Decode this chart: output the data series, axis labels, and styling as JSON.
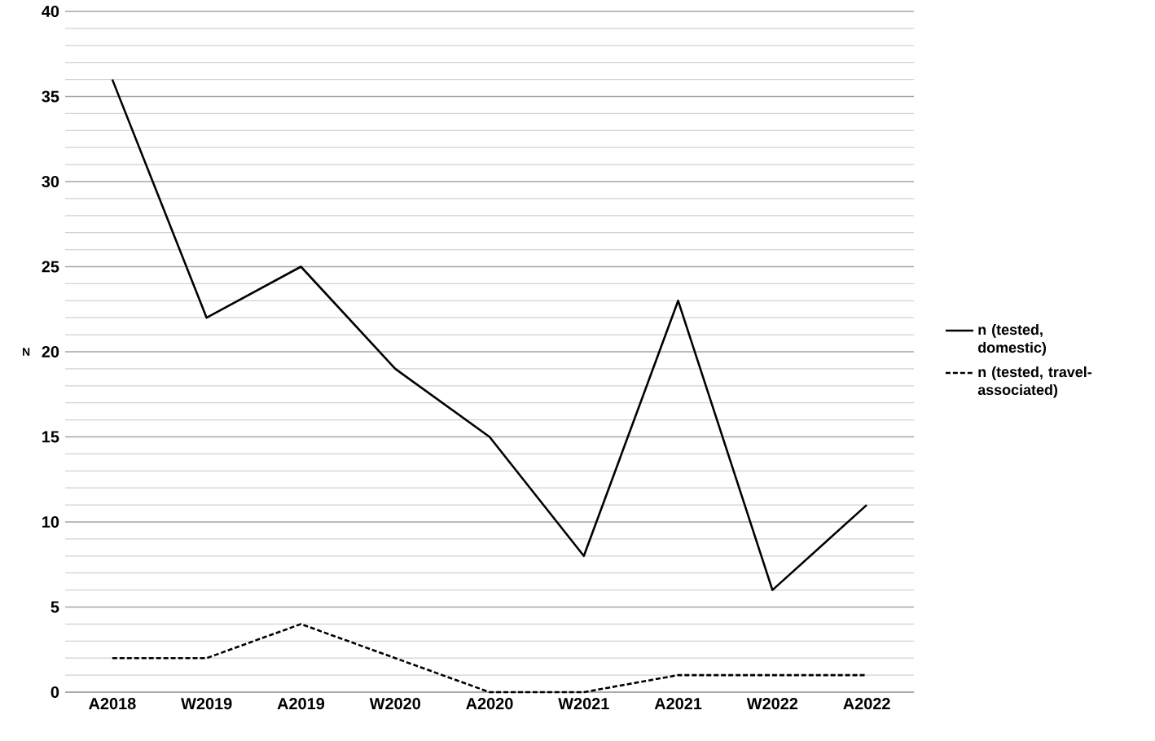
{
  "chart_data": {
    "type": "line",
    "ylabel": "N",
    "categories": [
      "A2018",
      "W2019",
      "A2019",
      "W2020",
      "A2020",
      "W2021",
      "A2021",
      "W2022",
      "A2022"
    ],
    "series": [
      {
        "name": "n (tested, domestic)",
        "color": "#000000",
        "line_style": "solid",
        "values": [
          36,
          22,
          25,
          19,
          15,
          8,
          23,
          6,
          11
        ]
      },
      {
        "name": "n (tested, travel-associated)",
        "color": "#000000",
        "line_style": "dashed",
        "values": [
          2,
          2,
          4,
          2,
          0,
          0,
          1,
          1,
          1
        ]
      }
    ],
    "ylim": [
      0,
      40
    ],
    "yticks": [
      0,
      5,
      10,
      15,
      20,
      25,
      30,
      35,
      40
    ],
    "grid": "y",
    "legend": "right",
    "marker": "none"
  }
}
